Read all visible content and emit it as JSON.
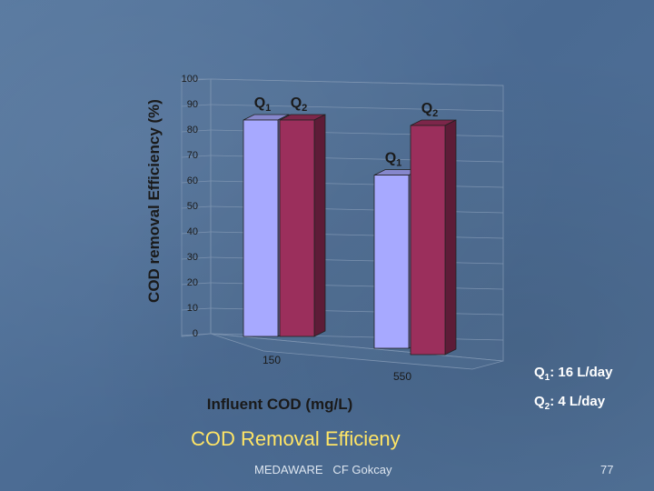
{
  "chart_data": {
    "type": "bar",
    "title": "",
    "xlabel": "Influent COD (mg/L)",
    "ylabel": "COD removal Efficiency (%)",
    "ylim": [
      0,
      100
    ],
    "yticks": [
      "0",
      "10",
      "20",
      "30",
      "40",
      "50",
      "60",
      "70",
      "80",
      "90",
      "100"
    ],
    "categories": [
      "150",
      "550"
    ],
    "series": [
      {
        "name": "Q1",
        "sub": "1",
        "values": [
          85,
          68
        ],
        "color": "#a7a9ff"
      },
      {
        "name": "Q2",
        "sub": "2",
        "values": [
          85,
          90
        ],
        "color": "#9b2f5c"
      }
    ]
  },
  "legend": [
    {
      "q": "Q",
      "sub": "1",
      "text": ": 16 L/day"
    },
    {
      "q": "Q",
      "sub": "2",
      "text": ": 4 L/day"
    }
  ],
  "slide": {
    "title": "COD Removal Efficieny",
    "footer_left": "MEDAWARE   CF Gokcay",
    "page_number": "77"
  }
}
